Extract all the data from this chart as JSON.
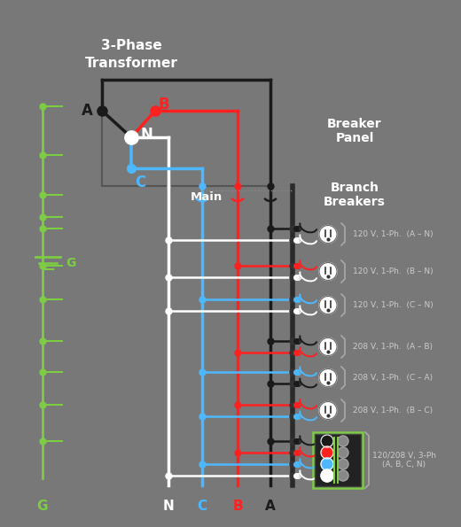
{
  "bg_color": "#787878",
  "wire_colors": {
    "A": "#1a1a1a",
    "B": "#ff2020",
    "C": "#4db8ff",
    "N": "#ffffff",
    "G": "#7ccc44"
  },
  "title_line1": "3-Phase",
  "title_line2": "Transformer",
  "label_breaker_panel": "Breaker\nPanel",
  "label_branch_breakers": "Branch\nBreakers",
  "circuit_labels": [
    "120 V, 1-Ph.  (A – N)",
    "120 V, 1-Ph.  (B – N)",
    "120 V, 1-Ph.  (C – N)",
    "208 V, 1-Ph.  (A – B)",
    "208 V, 1-Ph.  (C – A)",
    "208 V, 1-Ph.  (B – C)",
    "120/208 V, 3-Ph\n(A, B, C, N)"
  ],
  "circuit_wires": [
    [
      "A",
      "N"
    ],
    [
      "B",
      "N"
    ],
    [
      "C",
      "N"
    ],
    [
      "A",
      "B"
    ],
    [
      "C",
      "A"
    ],
    [
      "B",
      "C"
    ],
    [
      "A",
      "B",
      "C",
      "N"
    ]
  ],
  "bottom_labels": [
    {
      "text": "G",
      "color": "#7ccc44"
    },
    {
      "text": "N",
      "color": "#ffffff"
    },
    {
      "text": "C",
      "color": "#4db8ff"
    },
    {
      "text": "B",
      "color": "#ff2020"
    },
    {
      "text": "A",
      "color": "#1a1a1a"
    }
  ]
}
